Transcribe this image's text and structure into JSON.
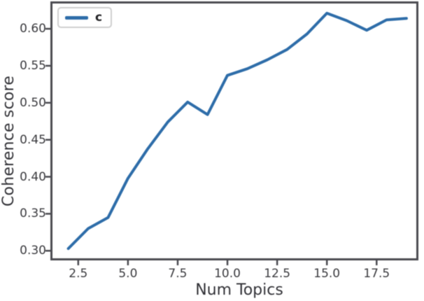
{
  "chart_data": {
    "type": "line",
    "title": "",
    "xlabel": "Num Topics",
    "ylabel": "Coherence score",
    "x": [
      2,
      3,
      4,
      5,
      6,
      7,
      8,
      9,
      10,
      11,
      12,
      13,
      14,
      15,
      16,
      17,
      18,
      19
    ],
    "series": [
      {
        "name": "c",
        "color": "#2e6da9",
        "values": [
          0.303,
          0.33,
          0.345,
          0.398,
          0.438,
          0.474,
          0.501,
          0.484,
          0.537,
          0.546,
          0.558,
          0.572,
          0.593,
          0.621,
          0.611,
          0.598,
          0.612,
          0.614
        ]
      }
    ],
    "xlim": [
      1.1,
      19.6
    ],
    "ylim": [
      0.287,
      0.637
    ],
    "xticks": {
      "values": [
        2.5,
        5.0,
        7.5,
        10.0,
        12.5,
        15.0,
        17.5
      ],
      "labels": [
        "2.5",
        "5.0",
        "7.5",
        "10.0",
        "12.5",
        "15.0",
        "17.5"
      ]
    },
    "yticks": {
      "values": [
        0.3,
        0.35,
        0.4,
        0.45,
        0.5,
        0.55,
        0.6
      ],
      "labels": [
        "0.30",
        "0.35",
        "0.40",
        "0.45",
        "0.50",
        "0.55",
        "0.60"
      ]
    },
    "legend": {
      "location": "upper left",
      "entries": [
        {
          "label": "c",
          "color": "#2e6da9"
        }
      ]
    },
    "grid": false
  },
  "style": {
    "background": "#ffffff",
    "spine_color": "#4a4a50",
    "tick_color": "#4a4a50",
    "text_color": "#3a3a3e",
    "legend_border": "#cfcfcf",
    "line_width": 4
  }
}
